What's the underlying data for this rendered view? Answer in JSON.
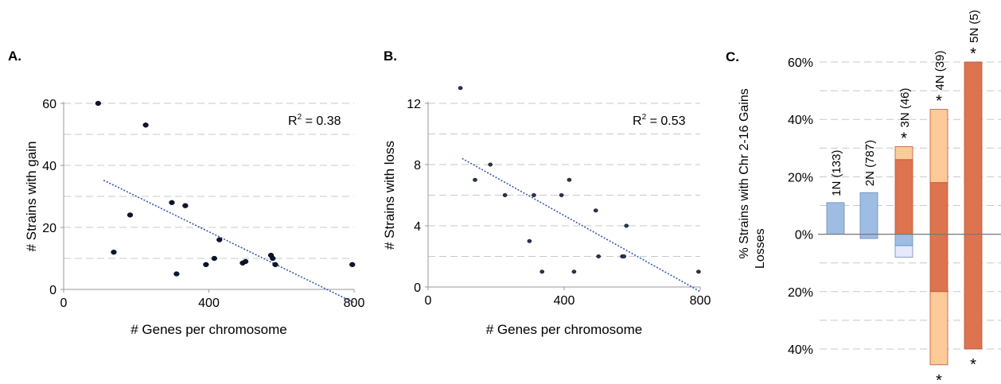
{
  "chart_data": [
    {
      "panel": "A.",
      "type": "scatter",
      "xlabel": "# Genes per chromosome",
      "ylabel": "# Strains with gain",
      "xlim": [
        0,
        800
      ],
      "ylim": [
        0,
        60
      ],
      "x_ticks": [
        "0",
        "400",
        "800"
      ],
      "y_ticks": [
        "0",
        "20",
        "40",
        "60"
      ],
      "grid": "horizontal dashed",
      "annotation": "R",
      "annotation_sup": "2",
      "annotation_value": " = 0.38",
      "points": [
        {
          "x": 95,
          "y": 60
        },
        {
          "x": 138,
          "y": 12
        },
        {
          "x": 183,
          "y": 24
        },
        {
          "x": 226,
          "y": 53
        },
        {
          "x": 298,
          "y": 28
        },
        {
          "x": 311,
          "y": 5
        },
        {
          "x": 335,
          "y": 27
        },
        {
          "x": 392,
          "y": 8
        },
        {
          "x": 415,
          "y": 10
        },
        {
          "x": 429,
          "y": 16
        },
        {
          "x": 493,
          "y": 8.5
        },
        {
          "x": 501,
          "y": 9
        },
        {
          "x": 571,
          "y": 11
        },
        {
          "x": 576,
          "y": 10
        },
        {
          "x": 583,
          "y": 8
        },
        {
          "x": 795,
          "y": 8
        }
      ],
      "trendline": {
        "x1": 110,
        "y1": 35.2,
        "x2": 800,
        "y2": -4.3,
        "style": "dotted",
        "color": "#3a56b0"
      },
      "point_color": "#0b1633"
    },
    {
      "panel": "B.",
      "type": "scatter",
      "xlabel": "# Genes per chromosome",
      "ylabel": "# Strains with loss",
      "xlim": [
        0,
        800
      ],
      "ylim": [
        0,
        12
      ],
      "x_ticks": [
        "0",
        "400",
        "800"
      ],
      "y_ticks": [
        "0",
        "4",
        "8",
        "12"
      ],
      "grid": "horizontal dashed",
      "annotation": "R",
      "annotation_sup": "2",
      "annotation_value": " = 0.53",
      "points": [
        {
          "x": 95,
          "y": 13
        },
        {
          "x": 138,
          "y": 7
        },
        {
          "x": 183,
          "y": 8
        },
        {
          "x": 226,
          "y": 6
        },
        {
          "x": 298,
          "y": 3
        },
        {
          "x": 311,
          "y": 6
        },
        {
          "x": 335,
          "y": 1
        },
        {
          "x": 392,
          "y": 6
        },
        {
          "x": 415,
          "y": 7
        },
        {
          "x": 429,
          "y": 1
        },
        {
          "x": 493,
          "y": 5
        },
        {
          "x": 501,
          "y": 2
        },
        {
          "x": 571,
          "y": 2
        },
        {
          "x": 576,
          "y": 2
        },
        {
          "x": 583,
          "y": 4
        },
        {
          "x": 795,
          "y": 1
        }
      ],
      "trendline": {
        "x1": 100,
        "y1": 8.4,
        "x2": 800,
        "y2": -0.3,
        "style": "dotted",
        "color": "#3a56b0"
      },
      "point_color": "#2a3558"
    },
    {
      "panel": "C.",
      "type": "bar",
      "ylabel_top": "% Strains with Chr 2-16 Gains",
      "ylabel_bottom": "Losses",
      "ylim": [
        -40,
        60
      ],
      "y_ticks": [
        {
          "v": 60,
          "label": "60%"
        },
        {
          "v": 40,
          "label": "40%"
        },
        {
          "v": 20,
          "label": "20%"
        },
        {
          "v": 0,
          "label": "0%"
        },
        {
          "v": -20,
          "label": "20%"
        },
        {
          "v": -40,
          "label": "40%"
        }
      ],
      "grid": "horizontal dashed",
      "colors": {
        "blue": "#9dbde3",
        "light_blue": "#e6e9fb",
        "dark_orange": "#de7350",
        "light_orange": "#fdca98"
      },
      "categories": [
        {
          "label": "1N (133)",
          "star_top": false,
          "star_bottom": false,
          "segments": [
            {
              "from": 0,
              "to": 11,
              "color": "blue"
            }
          ]
        },
        {
          "label": "2N (787)",
          "star_top": false,
          "star_bottom": false,
          "segments": [
            {
              "from": 0,
              "to": 14.5,
              "color": "blue"
            },
            {
              "from": -1.5,
              "to": 0,
              "color": "blue"
            }
          ]
        },
        {
          "label": "3N (46)",
          "star_top": true,
          "star_bottom": false,
          "segments": [
            {
              "from": 0,
              "to": 26,
              "color": "dark_orange"
            },
            {
              "from": 26,
              "to": 30.5,
              "color": "light_orange"
            },
            {
              "from": -4,
              "to": 0,
              "color": "blue"
            },
            {
              "from": -8,
              "to": -4,
              "color": "light_blue"
            }
          ]
        },
        {
          "label": "4N (39)",
          "star_top": true,
          "star_bottom": true,
          "segments": [
            {
              "from": 0,
              "to": 18,
              "color": "dark_orange"
            },
            {
              "from": 18,
              "to": 43.5,
              "color": "light_orange"
            },
            {
              "from": -20,
              "to": 0,
              "color": "dark_orange"
            },
            {
              "from": -45.5,
              "to": -20,
              "color": "light_orange"
            }
          ]
        },
        {
          "label": "5N (5)",
          "star_top": true,
          "star_bottom": true,
          "segments": [
            {
              "from": 0,
              "to": 60,
              "color": "dark_orange"
            },
            {
              "from": -40,
              "to": 0,
              "color": "dark_orange"
            }
          ]
        }
      ],
      "star": "*"
    }
  ]
}
